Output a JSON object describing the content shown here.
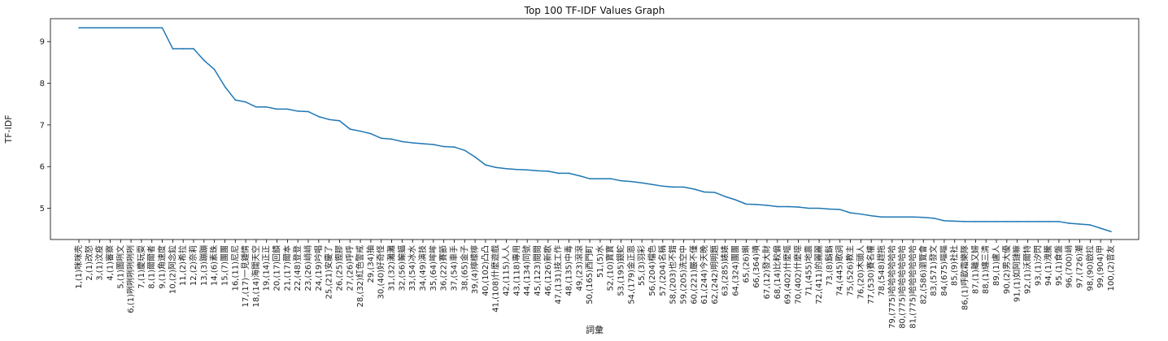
{
  "chart_data": {
    "type": "line",
    "title": "Top 100 TF-IDF Values Graph",
    "xlabel": "詞彙",
    "ylabel": "TF-IDF",
    "ylim": [
      4.25,
      9.55
    ],
    "yticks": [
      5,
      6,
      7,
      8,
      9
    ],
    "grid": false,
    "line_color": "#1f77b4",
    "categories": [
      "1,(1)咪咪壳",
      "2,(1)改怒",
      "3,(1)汶疫",
      "4,(1)審察",
      "5,(1)圖咧文",
      "6,(1)咧咧咧咧咧咧",
      "7,(1)慶玩耍",
      "8,(1)爾爾者",
      "9,(1)角速度",
      "10,(2)阿念鉝",
      "11,(2)希拉",
      "12,(2)奈莉",
      "13,(3)蹦蹦",
      "14,(6)素珠",
      "15,(7)團團",
      "16,(11)尼尼",
      "17,(17)一見鍾情",
      "18,(14)海闊天空",
      "19,(14)正正",
      "20,(17)回饋",
      "21,(17)爾本",
      "22,(48)登登",
      "23,(26)峭峭",
      "24,(19)吟唱",
      "25,(21)安慶了",
      "26,(25)鏗膠",
      "27,(26)呼呼",
      "28,(32)紅色警戒",
      "29,(34)抽",
      "30,(40)好奇怪",
      "31,(32)灘灘",
      "32,(56)蝙蝠",
      "33,(54)冰水",
      "34,(49)演技",
      "35,(64)哞哞",
      "36,(22)賽節",
      "37,(54)車手",
      "38,(65)金子",
      "39,(4)檸檬檸",
      "40,(102)凸凸",
      "41,(108)什麼遊戲",
      "42,(115)人人",
      "43,(118)專用",
      "44,(134)同號",
      "45,(123)閱閱",
      "46,(126)新歌",
      "47,(131)技工作",
      "48,(135)中毒",
      "49,(23)滾滾",
      "50,(165)西門町",
      "51,(5)水",
      "52,(10)寶寶",
      "53,(195)銀蛇",
      "54,(179)金正恩",
      "55,(3)羽彩",
      "56,(204)檔色",
      "57,(204)名稱",
      "58,(203)也不錯",
      "59,(205)洗空中",
      "60,(221)嚴不僅",
      "61,(244)今天晚",
      "62,(242)明明題",
      "63,(285)婊婊",
      "64,(324)團團",
      "65,(26)蝌",
      "66,(364)嘖",
      "67,(12)發大財",
      "68,(14)比較偏",
      "69,(402)什麼嘔",
      "70,(402)什麼噁",
      "71,(455)地震",
      "72,(411)的麗麗",
      "73,(8)鬍鬍",
      "74,(445)歌詞",
      "75,(526)教主",
      "76,(20)木頭人",
      "77,(530)賽名權",
      "78,(548)趕拖",
      "79,(775)哈哈哈哈哈哈",
      "80,(775)哈哈哈哈哈哈",
      "81,(775)哈哈哈哈哈哈",
      "82,(586)瀏覽會",
      "83,(571)發文",
      "84,(675)嘔嘔",
      "85,(9)社社",
      "86,(1)呼歐霜樂隊",
      "87,(1)離又婦",
      "88,(1)纏三清",
      "89,(1)盧人",
      "90,(2)男大優",
      "91,(1)如阿鏈嘛",
      "92,(1)沃爾特",
      "93,(1)汐閃",
      "94,(1)洩騰",
      "95,(1)食盤",
      "96,(700)峭",
      "97,(726)潮",
      "98,(90)啟拉",
      "99,(904)甲",
      "100,(2)音友"
    ],
    "values": [
      9.33,
      9.33,
      9.33,
      9.33,
      9.33,
      9.33,
      9.33,
      9.33,
      9.33,
      8.83,
      8.83,
      8.83,
      8.55,
      8.33,
      7.92,
      7.6,
      7.55,
      7.43,
      7.43,
      7.38,
      7.38,
      7.33,
      7.32,
      7.2,
      7.13,
      7.1,
      6.9,
      6.85,
      6.79,
      6.68,
      6.66,
      6.6,
      6.57,
      6.55,
      6.53,
      6.48,
      6.47,
      6.39,
      6.23,
      6.04,
      5.98,
      5.95,
      5.93,
      5.92,
      5.9,
      5.89,
      5.84,
      5.84,
      5.78,
      5.71,
      5.71,
      5.71,
      5.66,
      5.64,
      5.61,
      5.57,
      5.53,
      5.51,
      5.51,
      5.46,
      5.39,
      5.38,
      5.28,
      5.2,
      5.1,
      5.09,
      5.07,
      5.04,
      5.04,
      5.03,
      5.0,
      5.0,
      4.98,
      4.97,
      4.89,
      4.86,
      4.82,
      4.79,
      4.79,
      4.79,
      4.79,
      4.78,
      4.76,
      4.7,
      4.69,
      4.68,
      4.68,
      4.68,
      4.68,
      4.68,
      4.68,
      4.68,
      4.68,
      4.68,
      4.68,
      4.64,
      4.62,
      4.6,
      4.52,
      4.44
    ]
  }
}
